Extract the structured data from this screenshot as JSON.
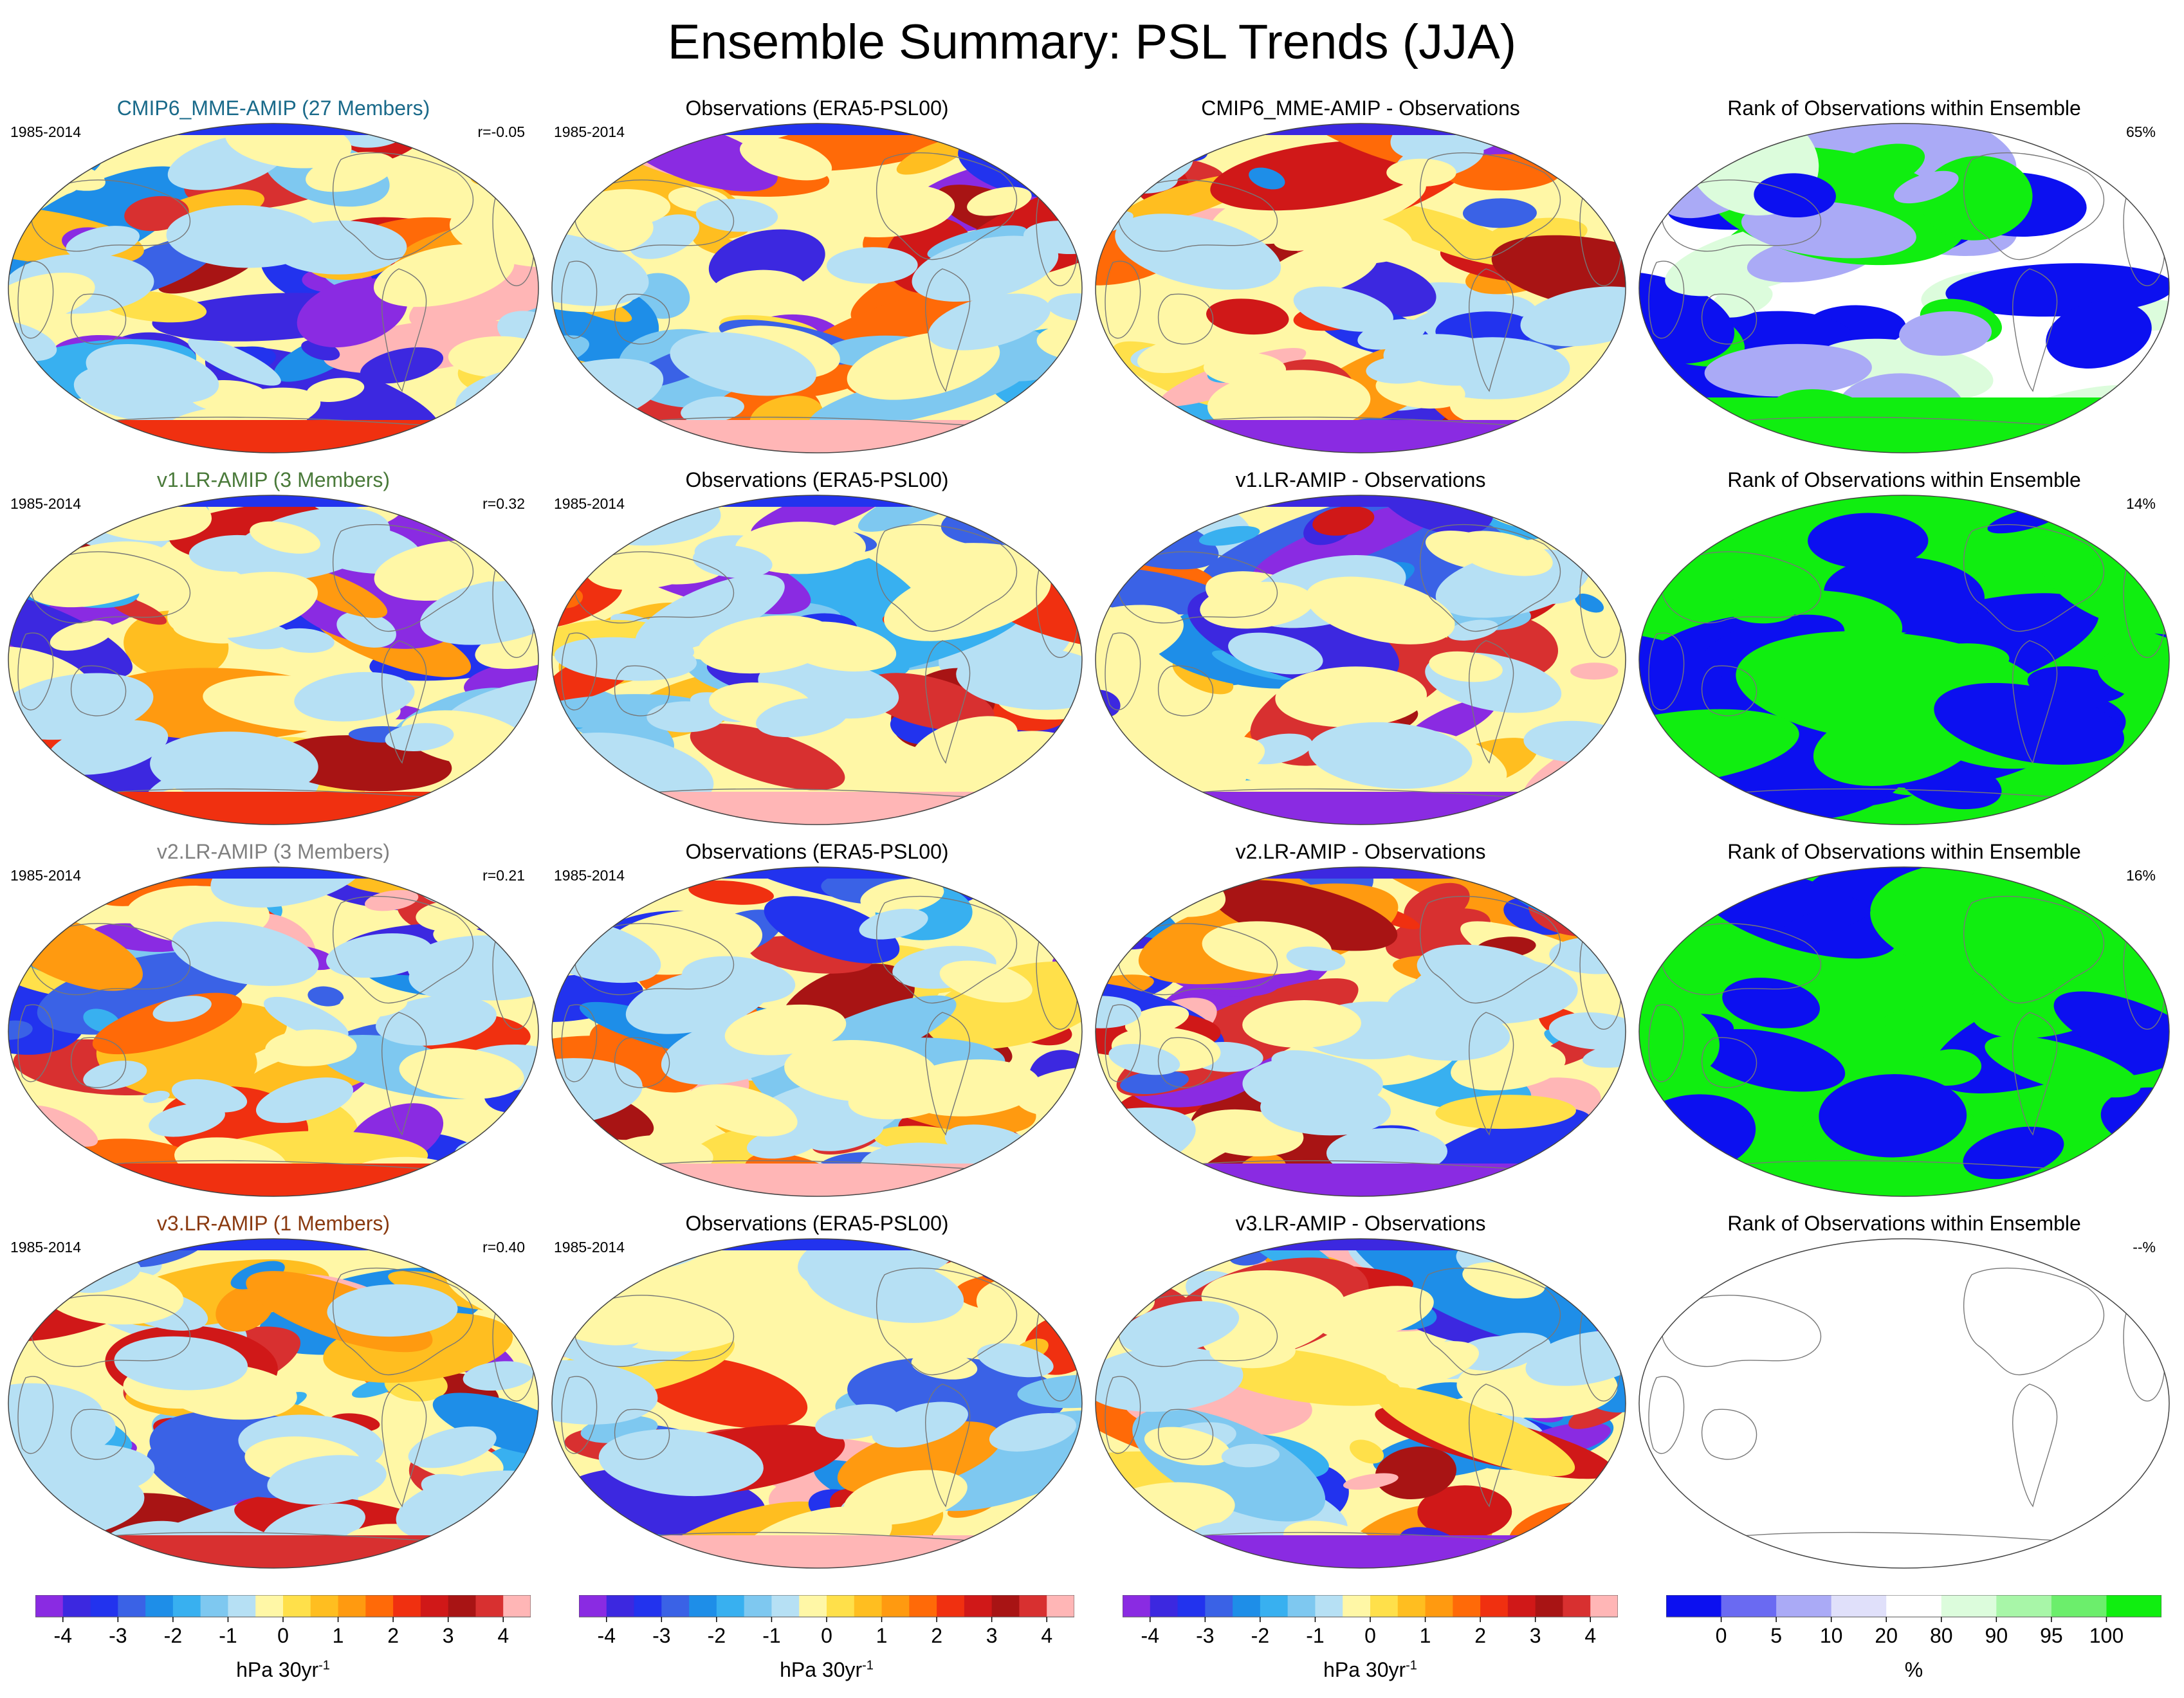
{
  "title": "Ensemble Summary: PSL Trends (JJA)",
  "period": "1985-2014",
  "rows": [
    {
      "model": {
        "title": "CMIP6_MME-AMIP (27 Members)",
        "title_color": "#1a6a8a",
        "period": "1985-2014",
        "stat": "r=-0.05"
      },
      "obs": {
        "title": "Observations (ERA5-PSL00)",
        "period": "1985-2014"
      },
      "diff": {
        "title": "CMIP6_MME-AMIP - Observations"
      },
      "rank": {
        "title": "Rank of Observations within Ensemble",
        "stat": "65%"
      }
    },
    {
      "model": {
        "title": "v1.LR-AMIP (3 Members)",
        "title_color": "#4a7a3a",
        "period": "1985-2014",
        "stat": "r=0.32"
      },
      "obs": {
        "title": "Observations (ERA5-PSL00)",
        "period": "1985-2014"
      },
      "diff": {
        "title": "v1.LR-AMIP - Observations"
      },
      "rank": {
        "title": "Rank of Observations within Ensemble",
        "stat": "14%"
      }
    },
    {
      "model": {
        "title": "v2.LR-AMIP (3 Members)",
        "title_color": "#808080",
        "period": "1985-2014",
        "stat": "r=0.21"
      },
      "obs": {
        "title": "Observations (ERA5-PSL00)",
        "period": "1985-2014"
      },
      "diff": {
        "title": "v2.LR-AMIP - Observations"
      },
      "rank": {
        "title": "Rank of Observations within Ensemble",
        "stat": "16%"
      }
    },
    {
      "model": {
        "title": "v3.LR-AMIP (1 Members)",
        "title_color": "#8a3a10",
        "period": "1985-2014",
        "stat": "r=0.40"
      },
      "obs": {
        "title": "Observations (ERA5-PSL00)",
        "period": "1985-2014"
      },
      "diff": {
        "title": "v3.LR-AMIP - Observations"
      },
      "rank": {
        "title": "Rank of Observations within Ensemble",
        "stat": "--%"
      }
    }
  ],
  "colorbars": {
    "trend": {
      "label": "hPa 30yr",
      "label_sup": "-1",
      "ticks": [
        "-4",
        "-3",
        "-2",
        "-1",
        "0",
        "1",
        "2",
        "3",
        "4"
      ],
      "colors": [
        "#8a2be2",
        "#3c28e0",
        "#2233ee",
        "#3a62e6",
        "#1e8ee8",
        "#38b0f0",
        "#7ec8f0",
        "#b6e0f4",
        "#fff7a6",
        "#ffe04a",
        "#ffbe20",
        "#ff9a10",
        "#ff6a08",
        "#f03010",
        "#d01818",
        "#a81414",
        "#d83030",
        "#ffb6b6"
      ]
    },
    "rank": {
      "label": "%",
      "ticks": [
        "0",
        "5",
        "10",
        "20",
        "80",
        "90",
        "95",
        "100"
      ],
      "colors": [
        "#0c10f0",
        "#6a6af2",
        "#aaaaf6",
        "#e0e0fa",
        "#ffffff",
        "#dcfcdc",
        "#a8f6a8",
        "#6cee6c",
        "#10ee10"
      ]
    }
  },
  "chart_data": {
    "type": "heatmap",
    "title": "Ensemble Summary: PSL Trends (JJA)",
    "projection": "Robinson, Pacific-centred global maps",
    "layout": "4 rows x 4 columns (model, observations, model minus observations, rank)",
    "trend_scale": {
      "unit": "hPa 30yr-1",
      "min": -4,
      "max": 4,
      "levels": 18
    },
    "rank_scale": {
      "unit": "%",
      "bounds": [
        0,
        5,
        10,
        20,
        80,
        90,
        95,
        100
      ]
    },
    "panels": [
      {
        "row": 1,
        "model": "CMIP6_MME-AMIP",
        "members": 27,
        "pattern_correlation": -0.05,
        "rank_percent": 65
      },
      {
        "row": 2,
        "model": "v1.LR-AMIP",
        "members": 3,
        "pattern_correlation": 0.32,
        "rank_percent": 14
      },
      {
        "row": 3,
        "model": "v2.LR-AMIP",
        "members": 3,
        "pattern_correlation": 0.21,
        "rank_percent": 16
      },
      {
        "row": 4,
        "model": "v3.LR-AMIP",
        "members": 1,
        "pattern_correlation": 0.4,
        "rank_percent": null
      }
    ]
  }
}
